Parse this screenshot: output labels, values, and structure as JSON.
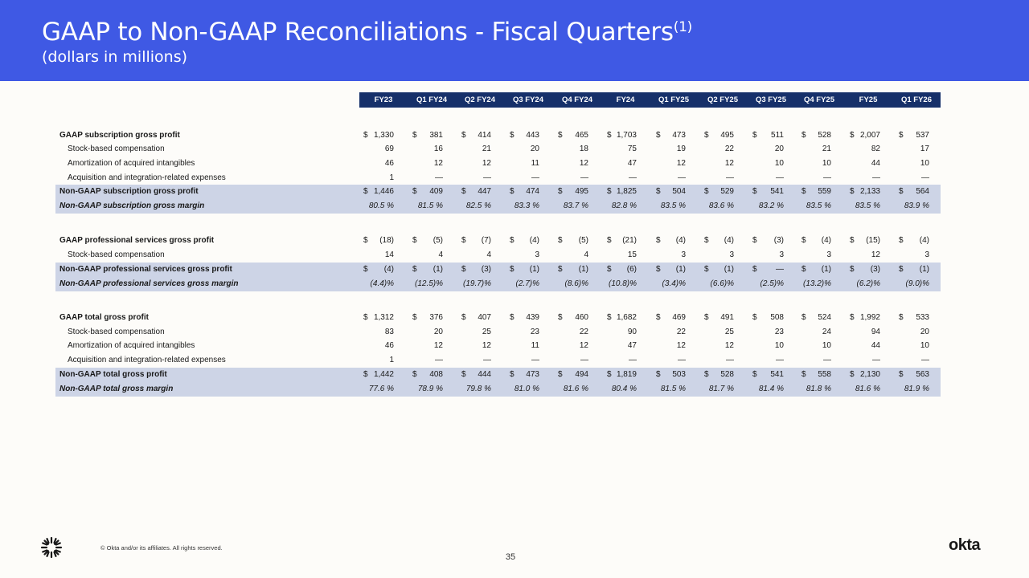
{
  "header": {
    "title": "GAAP to Non-GAAP Reconciliations - Fiscal Quarters",
    "title_sup": "(1)",
    "subtitle": "(dollars in millions)"
  },
  "table": {
    "columns": [
      "FY23",
      "Q1 FY24",
      "Q2 FY24",
      "Q3 FY24",
      "Q4 FY24",
      "FY24",
      "Q1 FY25",
      "Q2 FY25",
      "Q3 FY25",
      "Q4 FY25",
      "FY25",
      "Q1 FY26"
    ],
    "rows": [
      {
        "label": "GAAP subscription gross profit",
        "style": "bold",
        "dollar": true,
        "values": [
          "1,330",
          "381",
          "414",
          "443",
          "465",
          "1,703",
          "473",
          "495",
          "511",
          "528",
          "2,007",
          "537"
        ]
      },
      {
        "label": "Stock-based compensation",
        "style": "indent",
        "dollar": false,
        "values": [
          "69",
          "16",
          "21",
          "20",
          "18",
          "75",
          "19",
          "22",
          "20",
          "21",
          "82",
          "17"
        ]
      },
      {
        "label": "Amortization of acquired intangibles",
        "style": "indent",
        "dollar": false,
        "values": [
          "46",
          "12",
          "12",
          "11",
          "12",
          "47",
          "12",
          "12",
          "10",
          "10",
          "44",
          "10"
        ]
      },
      {
        "label": "Acquisition and integration-related expenses",
        "style": "indent",
        "dollar": false,
        "values": [
          "1",
          "—",
          "—",
          "—",
          "—",
          "—",
          "—",
          "—",
          "—",
          "—",
          "—",
          "—"
        ]
      },
      {
        "label": "Non-GAAP subscription gross profit",
        "style": "bold",
        "shade": true,
        "dollar": true,
        "values": [
          "1,446",
          "409",
          "447",
          "474",
          "495",
          "1,825",
          "504",
          "529",
          "541",
          "559",
          "2,133",
          "564"
        ]
      },
      {
        "label": "Non-GAAP subscription gross margin",
        "style": "italic",
        "shade": true,
        "dollar": false,
        "values": [
          "80.5 %",
          "81.5 %",
          "82.5 %",
          "83.3 %",
          "83.7 %",
          "82.8 %",
          "83.5 %",
          "83.6 %",
          "83.2 %",
          "83.5 %",
          "83.5 %",
          "83.9 %"
        ]
      },
      {
        "label": "GAAP professional services gross profit",
        "style": "bold",
        "dollar": true,
        "values": [
          "(18)",
          "(5)",
          "(7)",
          "(4)",
          "(5)",
          "(21)",
          "(4)",
          "(4)",
          "(3)",
          "(4)",
          "(15)",
          "(4)"
        ]
      },
      {
        "label": "Stock-based compensation",
        "style": "indent",
        "dollar": false,
        "values": [
          "14",
          "4",
          "4",
          "3",
          "4",
          "15",
          "3",
          "3",
          "3",
          "3",
          "12",
          "3"
        ]
      },
      {
        "label": "Non-GAAP professional services gross profit",
        "style": "bold",
        "shade": true,
        "dollar": true,
        "values": [
          "(4)",
          "(1)",
          "(3)",
          "(1)",
          "(1)",
          "(6)",
          "(1)",
          "(1)",
          "—",
          "(1)",
          "(3)",
          "(1)"
        ]
      },
      {
        "label": "Non-GAAP professional services gross margin",
        "style": "italic",
        "shade": true,
        "dollar": false,
        "values": [
          "(4.4)%",
          "(12.5)%",
          "(19.7)%",
          "(2.7)%",
          "(8.6)%",
          "(10.8)%",
          "(3.4)%",
          "(6.6)%",
          "(2.5)%",
          "(13.2)%",
          "(6.2)%",
          "(9.0)%"
        ]
      },
      {
        "label": "GAAP total gross profit",
        "style": "bold",
        "dollar": true,
        "values": [
          "1,312",
          "376",
          "407",
          "439",
          "460",
          "1,682",
          "469",
          "491",
          "508",
          "524",
          "1,992",
          "533"
        ]
      },
      {
        "label": "Stock-based compensation",
        "style": "indent",
        "dollar": false,
        "values": [
          "83",
          "20",
          "25",
          "23",
          "22",
          "90",
          "22",
          "25",
          "23",
          "24",
          "94",
          "20"
        ]
      },
      {
        "label": "Amortization of acquired intangibles",
        "style": "indent",
        "dollar": false,
        "values": [
          "46",
          "12",
          "12",
          "11",
          "12",
          "47",
          "12",
          "12",
          "10",
          "10",
          "44",
          "10"
        ]
      },
      {
        "label": "Acquisition and integration-related expenses",
        "style": "indent",
        "dollar": false,
        "values": [
          "1",
          "—",
          "—",
          "—",
          "—",
          "—",
          "—",
          "—",
          "—",
          "—",
          "—",
          "—"
        ]
      },
      {
        "label": "Non-GAAP total gross profit",
        "style": "bold",
        "shade": true,
        "dollar": true,
        "values": [
          "1,442",
          "408",
          "444",
          "473",
          "494",
          "1,819",
          "503",
          "528",
          "541",
          "558",
          "2,130",
          "563"
        ]
      },
      {
        "label": "Non-GAAP total gross margin",
        "style": "italic",
        "shade": true,
        "dollar": false,
        "values": [
          "77.6 %",
          "78.9 %",
          "79.8 %",
          "81.0 %",
          "81.6 %",
          "80.4 %",
          "81.5 %",
          "81.7 %",
          "81.4 %",
          "81.8 %",
          "81.6 %",
          "81.9 %"
        ]
      }
    ],
    "dollar_sign": "$"
  },
  "footer": {
    "copyright": "© Okta and/or its affiliates. All rights reserved.",
    "page_number": "35",
    "brand": "okta"
  }
}
